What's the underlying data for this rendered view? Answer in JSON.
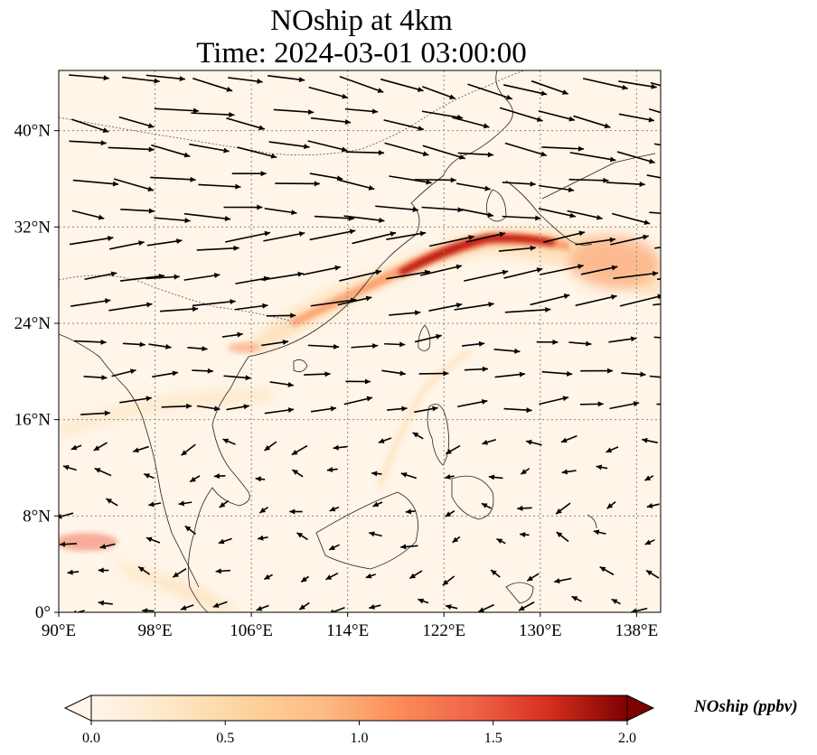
{
  "title_line1": "NOship at 4km",
  "title_line2": "Time: 2024-03-01 03:00:00",
  "map": {
    "lon_range": [
      90,
      140
    ],
    "lat_range": [
      0,
      45
    ],
    "lon_ticks": [
      {
        "value": 90,
        "label": "90°E"
      },
      {
        "value": 98,
        "label": "98°E"
      },
      {
        "value": 106,
        "label": "106°E"
      },
      {
        "value": 114,
        "label": "114°E"
      },
      {
        "value": 122,
        "label": "122°E"
      },
      {
        "value": 130,
        "label": "130°E"
      },
      {
        "value": 138,
        "label": "138°E"
      }
    ],
    "lat_ticks": [
      {
        "value": 0,
        "label": "0°"
      },
      {
        "value": 8,
        "label": "8°N"
      },
      {
        "value": 16,
        "label": "16°N"
      },
      {
        "value": 24,
        "label": "24°N"
      },
      {
        "value": 32,
        "label": "32°N"
      },
      {
        "value": 40,
        "label": "40°N"
      }
    ],
    "background_color": "#fff5e8",
    "concentration_max_color": "#7f0000",
    "wind_arrow_color": "#000000"
  },
  "colorbar": {
    "label": "NOship (ppbv)",
    "min": 0.0,
    "max": 2.0,
    "extend": "both",
    "ticks": [
      {
        "value": 0.0,
        "label": "0.0"
      },
      {
        "value": 0.5,
        "label": "0.5"
      },
      {
        "value": 1.0,
        "label": "1.0"
      },
      {
        "value": 1.5,
        "label": "1.5"
      },
      {
        "value": 2.0,
        "label": "2.0"
      }
    ],
    "colors": [
      "#fff5eb",
      "#fdd49e",
      "#fdbb84",
      "#fc8d59",
      "#ef6548",
      "#d7301f",
      "#b30000",
      "#7f0000"
    ]
  }
}
